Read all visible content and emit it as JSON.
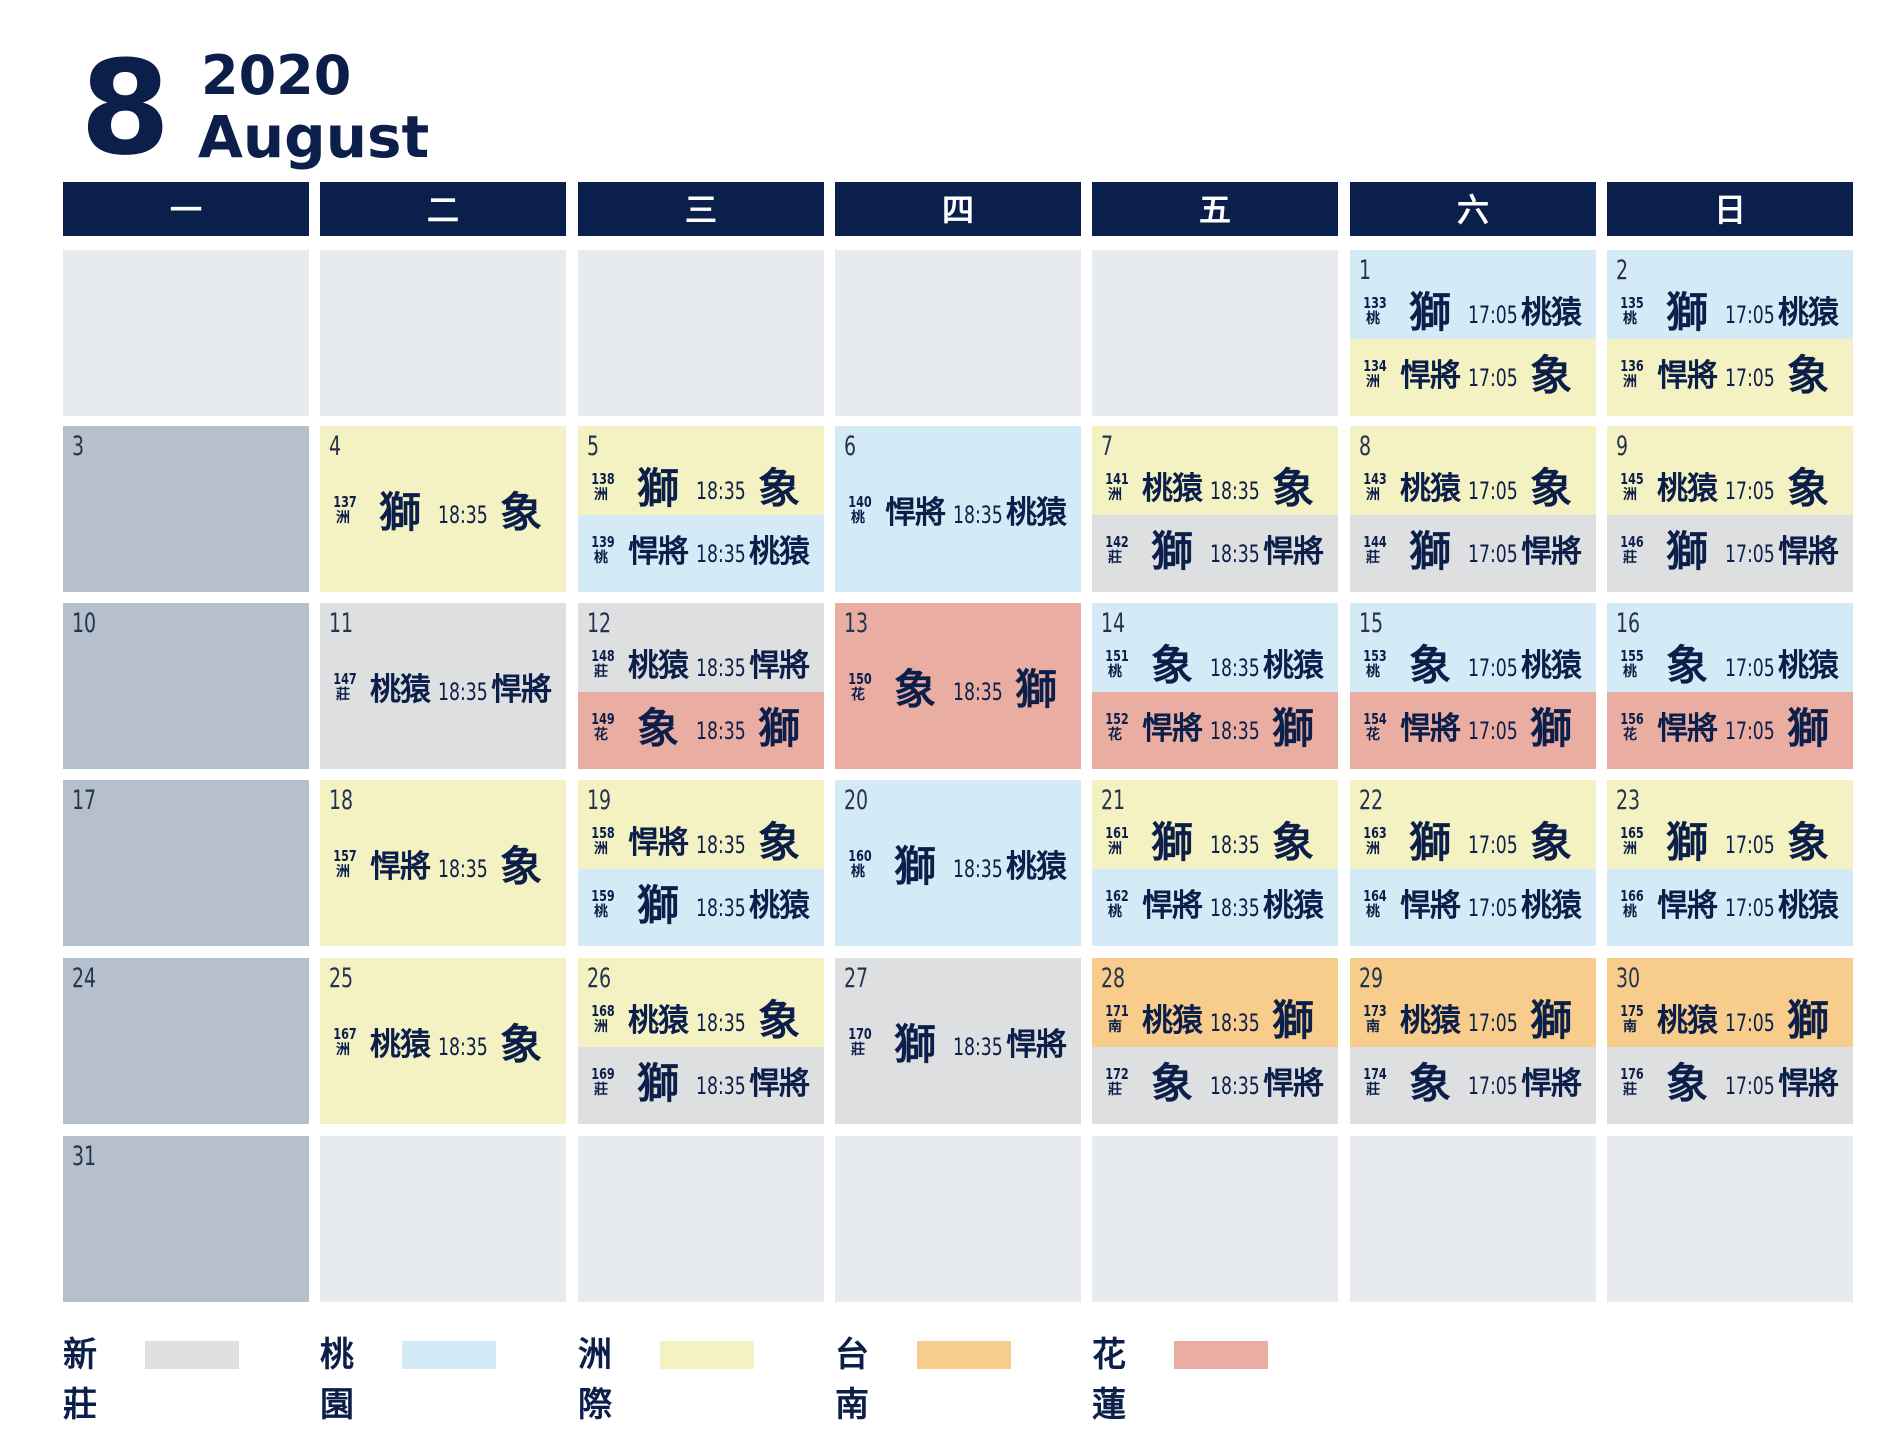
{
  "header": {
    "month_number": "8",
    "year": "2020",
    "month_name": "August"
  },
  "weekdays": [
    "一",
    "二",
    "三",
    "四",
    "五",
    "六",
    "日"
  ],
  "venue_colors": {
    "xz": "#dedfe0",
    "ty": "#d4ebf7",
    "zj": "#f4f2c2",
    "tn": "#f8cc8a",
    "hl": "#eaada1"
  },
  "weeks": [
    [
      {
        "date": ""
      },
      {
        "date": ""
      },
      {
        "date": ""
      },
      {
        "date": ""
      },
      {
        "date": ""
      },
      {
        "date": "1",
        "games": [
          {
            "no": "133",
            "venue_code": "ty",
            "venue": "桃",
            "away": "獅",
            "time": "17:05",
            "home": "桃猿"
          },
          {
            "no": "134",
            "venue_code": "zj",
            "venue": "洲",
            "away": "悍將",
            "time": "17:05",
            "home": "象"
          }
        ]
      },
      {
        "date": "2",
        "games": [
          {
            "no": "135",
            "venue_code": "ty",
            "venue": "桃",
            "away": "獅",
            "time": "17:05",
            "home": "桃猿"
          },
          {
            "no": "136",
            "venue_code": "zj",
            "venue": "洲",
            "away": "悍將",
            "time": "17:05",
            "home": "象"
          }
        ]
      }
    ],
    [
      {
        "date": "3"
      },
      {
        "date": "4",
        "games": [
          {
            "no": "137",
            "venue_code": "zj",
            "venue": "洲",
            "away": "獅",
            "time": "18:35",
            "home": "象"
          }
        ]
      },
      {
        "date": "5",
        "games": [
          {
            "no": "138",
            "venue_code": "zj",
            "venue": "洲",
            "away": "獅",
            "time": "18:35",
            "home": "象"
          },
          {
            "no": "139",
            "venue_code": "ty",
            "venue": "桃",
            "away": "悍將",
            "time": "18:35",
            "home": "桃猿"
          }
        ]
      },
      {
        "date": "6",
        "games": [
          {
            "no": "140",
            "venue_code": "ty",
            "venue": "桃",
            "away": "悍將",
            "time": "18:35",
            "home": "桃猿"
          }
        ]
      },
      {
        "date": "7",
        "games": [
          {
            "no": "141",
            "venue_code": "zj",
            "venue": "洲",
            "away": "桃猿",
            "time": "18:35",
            "home": "象"
          },
          {
            "no": "142",
            "venue_code": "xz",
            "venue": "莊",
            "away": "獅",
            "time": "18:35",
            "home": "悍將"
          }
        ]
      },
      {
        "date": "8",
        "games": [
          {
            "no": "143",
            "venue_code": "zj",
            "venue": "洲",
            "away": "桃猿",
            "time": "17:05",
            "home": "象"
          },
          {
            "no": "144",
            "venue_code": "xz",
            "venue": "莊",
            "away": "獅",
            "time": "17:05",
            "home": "悍將"
          }
        ]
      },
      {
        "date": "9",
        "games": [
          {
            "no": "145",
            "venue_code": "zj",
            "venue": "洲",
            "away": "桃猿",
            "time": "17:05",
            "home": "象"
          },
          {
            "no": "146",
            "venue_code": "xz",
            "venue": "莊",
            "away": "獅",
            "time": "17:05",
            "home": "悍將"
          }
        ]
      }
    ],
    [
      {
        "date": "10"
      },
      {
        "date": "11",
        "games": [
          {
            "no": "147",
            "venue_code": "xz",
            "venue": "莊",
            "away": "桃猿",
            "time": "18:35",
            "home": "悍將"
          }
        ]
      },
      {
        "date": "12",
        "games": [
          {
            "no": "148",
            "venue_code": "xz",
            "venue": "莊",
            "away": "桃猿",
            "time": "18:35",
            "home": "悍將"
          },
          {
            "no": "149",
            "venue_code": "hl",
            "venue": "花",
            "away": "象",
            "time": "18:35",
            "home": "獅"
          }
        ]
      },
      {
        "date": "13",
        "games": [
          {
            "no": "150",
            "venue_code": "hl",
            "venue": "花",
            "away": "象",
            "time": "18:35",
            "home": "獅"
          }
        ]
      },
      {
        "date": "14",
        "games": [
          {
            "no": "151",
            "venue_code": "ty",
            "venue": "桃",
            "away": "象",
            "time": "18:35",
            "home": "桃猿"
          },
          {
            "no": "152",
            "venue_code": "hl",
            "venue": "花",
            "away": "悍將",
            "time": "18:35",
            "home": "獅"
          }
        ]
      },
      {
        "date": "15",
        "games": [
          {
            "no": "153",
            "venue_code": "ty",
            "venue": "桃",
            "away": "象",
            "time": "17:05",
            "home": "桃猿"
          },
          {
            "no": "154",
            "venue_code": "hl",
            "venue": "花",
            "away": "悍將",
            "time": "17:05",
            "home": "獅"
          }
        ]
      },
      {
        "date": "16",
        "games": [
          {
            "no": "155",
            "venue_code": "ty",
            "venue": "桃",
            "away": "象",
            "time": "17:05",
            "home": "桃猿"
          },
          {
            "no": "156",
            "venue_code": "hl",
            "venue": "花",
            "away": "悍將",
            "time": "17:05",
            "home": "獅"
          }
        ]
      }
    ],
    [
      {
        "date": "17"
      },
      {
        "date": "18",
        "games": [
          {
            "no": "157",
            "venue_code": "zj",
            "venue": "洲",
            "away": "悍將",
            "time": "18:35",
            "home": "象"
          }
        ]
      },
      {
        "date": "19",
        "games": [
          {
            "no": "158",
            "venue_code": "zj",
            "venue": "洲",
            "away": "悍將",
            "time": "18:35",
            "home": "象"
          },
          {
            "no": "159",
            "venue_code": "ty",
            "venue": "桃",
            "away": "獅",
            "time": "18:35",
            "home": "桃猿"
          }
        ]
      },
      {
        "date": "20",
        "games": [
          {
            "no": "160",
            "venue_code": "ty",
            "venue": "桃",
            "away": "獅",
            "time": "18:35",
            "home": "桃猿"
          }
        ]
      },
      {
        "date": "21",
        "games": [
          {
            "no": "161",
            "venue_code": "zj",
            "venue": "洲",
            "away": "獅",
            "time": "18:35",
            "home": "象"
          },
          {
            "no": "162",
            "venue_code": "ty",
            "venue": "桃",
            "away": "悍將",
            "time": "18:35",
            "home": "桃猿"
          }
        ]
      },
      {
        "date": "22",
        "games": [
          {
            "no": "163",
            "venue_code": "zj",
            "venue": "洲",
            "away": "獅",
            "time": "17:05",
            "home": "象"
          },
          {
            "no": "164",
            "venue_code": "ty",
            "venue": "桃",
            "away": "悍將",
            "time": "17:05",
            "home": "桃猿"
          }
        ]
      },
      {
        "date": "23",
        "games": [
          {
            "no": "165",
            "venue_code": "zj",
            "venue": "洲",
            "away": "獅",
            "time": "17:05",
            "home": "象"
          },
          {
            "no": "166",
            "venue_code": "ty",
            "venue": "桃",
            "away": "悍將",
            "time": "17:05",
            "home": "桃猿"
          }
        ]
      }
    ],
    [
      {
        "date": "24"
      },
      {
        "date": "25",
        "games": [
          {
            "no": "167",
            "venue_code": "zj",
            "venue": "洲",
            "away": "桃猿",
            "time": "18:35",
            "home": "象"
          }
        ]
      },
      {
        "date": "26",
        "games": [
          {
            "no": "168",
            "venue_code": "zj",
            "venue": "洲",
            "away": "桃猿",
            "time": "18:35",
            "home": "象"
          },
          {
            "no": "169",
            "venue_code": "xz",
            "venue": "莊",
            "away": "獅",
            "time": "18:35",
            "home": "悍將"
          }
        ]
      },
      {
        "date": "27",
        "games": [
          {
            "no": "170",
            "venue_code": "xz",
            "venue": "莊",
            "away": "獅",
            "time": "18:35",
            "home": "悍將"
          }
        ]
      },
      {
        "date": "28",
        "games": [
          {
            "no": "171",
            "venue_code": "tn",
            "venue": "南",
            "away": "桃猿",
            "time": "18:35",
            "home": "獅"
          },
          {
            "no": "172",
            "venue_code": "xz",
            "venue": "莊",
            "away": "象",
            "time": "18:35",
            "home": "悍將"
          }
        ]
      },
      {
        "date": "29",
        "games": [
          {
            "no": "173",
            "venue_code": "tn",
            "venue": "南",
            "away": "桃猿",
            "time": "17:05",
            "home": "獅"
          },
          {
            "no": "174",
            "venue_code": "xz",
            "venue": "莊",
            "away": "象",
            "time": "17:05",
            "home": "悍將"
          }
        ]
      },
      {
        "date": "30",
        "games": [
          {
            "no": "175",
            "venue_code": "tn",
            "venue": "南",
            "away": "桃猿",
            "time": "17:05",
            "home": "獅"
          },
          {
            "no": "176",
            "venue_code": "xz",
            "venue": "莊",
            "away": "象",
            "time": "17:05",
            "home": "悍將"
          }
        ]
      }
    ],
    [
      {
        "date": "31"
      },
      {
        "date": ""
      },
      {
        "date": ""
      },
      {
        "date": ""
      },
      {
        "date": ""
      },
      {
        "date": ""
      },
      {
        "date": ""
      }
    ]
  ],
  "legend": [
    {
      "label": "新莊",
      "venue_code": "xz"
    },
    {
      "label": "桃園",
      "venue_code": "ty"
    },
    {
      "label": "洲際",
      "venue_code": "zj"
    },
    {
      "label": "台南",
      "venue_code": "tn"
    },
    {
      "label": "花蓮",
      "venue_code": "hl"
    }
  ]
}
